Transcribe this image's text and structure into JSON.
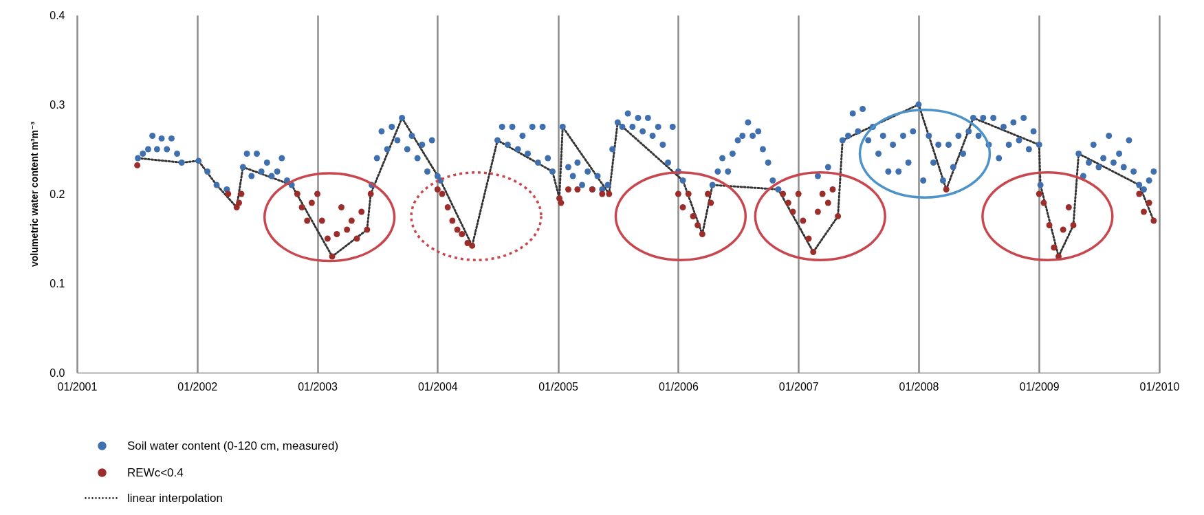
{
  "chart_data": {
    "type": "scatter",
    "ylabel": "volumetric water content m³m⁻³",
    "xlim": [
      "2001-01",
      "2010-01"
    ],
    "ylim": [
      0,
      0.4
    ],
    "xticks": [
      {
        "value": "2001-01",
        "label": "01/2001"
      },
      {
        "value": "2002-01",
        "label": "01/2002"
      },
      {
        "value": "2003-01",
        "label": "01/2003"
      },
      {
        "value": "2004-01",
        "label": "01/2004"
      },
      {
        "value": "2005-01",
        "label": "01/2005"
      },
      {
        "value": "2006-01",
        "label": "01/2006"
      },
      {
        "value": "2007-01",
        "label": "01/2007"
      },
      {
        "value": "2008-01",
        "label": "01/2008"
      },
      {
        "value": "2009-01",
        "label": "01/2009"
      },
      {
        "value": "2010-01",
        "label": "01/2010"
      }
    ],
    "yticks": [
      {
        "value": 0,
        "label": "0.0"
      },
      {
        "value": 0.1,
        "label": "0.1"
      },
      {
        "value": 0.2,
        "label": "0.2"
      },
      {
        "value": 0.3,
        "label": "0.3"
      },
      {
        "value": 0.4,
        "label": "0.4"
      }
    ],
    "grid": "x",
    "legend": "bottom left",
    "series": [
      {
        "name": "Soil water content (0-120 cm, measured)",
        "type": "scatter",
        "marker": "circle",
        "color": "#3f6faf",
        "x": [
          "2001-07-05",
          "2001-07-20",
          "2001-08-05",
          "2001-08-18",
          "2001-09-01",
          "2001-09-15",
          "2001-10-01",
          "2001-10-15",
          "2001-11-01",
          "2001-11-15",
          "2002-01-05",
          "2002-02-01",
          "2002-03-01",
          "2002-04-01",
          "2002-05-20",
          "2002-06-01",
          "2002-06-15",
          "2002-07-01",
          "2002-07-15",
          "2002-08-01",
          "2002-08-15",
          "2002-09-01",
          "2002-09-15",
          "2002-10-01",
          "2002-10-15",
          "2003-06-15",
          "2003-07-01",
          "2003-07-15",
          "2003-08-01",
          "2003-08-15",
          "2003-09-01",
          "2003-09-15",
          "2003-10-01",
          "2003-10-15",
          "2003-11-01",
          "2003-11-15",
          "2003-12-01",
          "2003-12-15",
          "2004-01-01",
          "2004-01-10",
          "2004-07-01",
          "2004-07-15",
          "2004-08-01",
          "2004-08-15",
          "2004-09-01",
          "2004-09-15",
          "2004-10-01",
          "2004-10-15",
          "2004-11-01",
          "2004-11-15",
          "2004-12-01",
          "2004-12-15",
          "2005-01-15",
          "2005-02-01",
          "2005-02-15",
          "2005-03-01",
          "2005-03-15",
          "2005-04-01",
          "2005-04-15",
          "2005-05-01",
          "2005-05-15",
          "2005-06-01",
          "2005-06-15",
          "2005-07-01",
          "2005-07-15",
          "2005-08-01",
          "2005-08-15",
          "2005-09-01",
          "2005-09-15",
          "2005-10-01",
          "2005-10-15",
          "2005-11-01",
          "2005-11-15",
          "2005-12-01",
          "2005-12-15",
          "2006-01-01",
          "2006-01-15",
          "2006-04-15",
          "2006-05-01",
          "2006-05-15",
          "2006-06-01",
          "2006-06-15",
          "2006-07-01",
          "2006-07-15",
          "2006-08-01",
          "2006-08-15",
          "2006-09-01",
          "2006-09-15",
          "2006-10-01",
          "2006-10-15",
          "2006-11-01",
          "2007-03-01",
          "2007-04-01",
          "2007-05-15",
          "2007-06-01",
          "2007-06-15",
          "2007-07-01",
          "2007-07-15",
          "2007-08-01",
          "2007-08-15",
          "2007-09-01",
          "2007-09-15",
          "2007-10-01",
          "2007-10-15",
          "2007-11-01",
          "2007-11-15",
          "2007-12-01",
          "2007-12-15",
          "2008-01-01",
          "2008-01-15",
          "2008-02-01",
          "2008-02-15",
          "2008-03-01",
          "2008-03-15",
          "2008-04-01",
          "2008-04-15",
          "2008-05-01",
          "2008-05-15",
          "2008-06-01",
          "2008-06-15",
          "2008-07-01",
          "2008-07-15",
          "2008-08-01",
          "2008-08-15",
          "2008-09-01",
          "2008-09-15",
          "2008-10-01",
          "2008-10-15",
          "2008-11-01",
          "2008-11-15",
          "2008-12-01",
          "2008-12-15",
          "2009-01-01",
          "2009-01-05",
          "2009-05-01",
          "2009-05-15",
          "2009-06-01",
          "2009-06-15",
          "2009-07-01",
          "2009-07-15",
          "2009-08-01",
          "2009-08-15",
          "2009-09-01",
          "2009-09-15",
          "2009-10-01",
          "2009-10-15",
          "2009-11-01",
          "2009-11-15",
          "2009-12-01",
          "2009-12-15"
        ],
        "values": [
          0.24,
          0.245,
          0.25,
          0.265,
          0.25,
          0.262,
          0.25,
          0.262,
          0.245,
          0.235,
          0.237,
          0.225,
          0.21,
          0.205,
          0.23,
          0.245,
          0.22,
          0.245,
          0.225,
          0.235,
          0.22,
          0.225,
          0.24,
          0.215,
          0.21,
          0.21,
          0.24,
          0.27,
          0.25,
          0.275,
          0.26,
          0.285,
          0.25,
          0.265,
          0.24,
          0.255,
          0.225,
          0.26,
          0.22,
          0.215,
          0.26,
          0.275,
          0.255,
          0.275,
          0.25,
          0.265,
          0.245,
          0.275,
          0.235,
          0.275,
          0.24,
          0.225,
          0.275,
          0.23,
          0.22,
          0.235,
          0.21,
          0.225,
          0.205,
          0.22,
          0.205,
          0.21,
          0.25,
          0.28,
          0.275,
          0.29,
          0.275,
          0.285,
          0.27,
          0.285,
          0.265,
          0.275,
          0.255,
          0.235,
          0.275,
          0.225,
          0.215,
          0.21,
          0.225,
          0.24,
          0.225,
          0.245,
          0.26,
          0.265,
          0.28,
          0.265,
          0.27,
          0.25,
          0.235,
          0.215,
          0.205,
          0.22,
          0.23,
          0.26,
          0.265,
          0.29,
          0.27,
          0.295,
          0.26,
          0.275,
          0.245,
          0.265,
          0.225,
          0.255,
          0.225,
          0.265,
          0.235,
          0.27,
          0.3,
          0.215,
          0.265,
          0.235,
          0.255,
          0.215,
          0.255,
          0.23,
          0.265,
          0.245,
          0.27,
          0.285,
          0.265,
          0.285,
          0.255,
          0.285,
          0.24,
          0.275,
          0.255,
          0.28,
          0.26,
          0.285,
          0.25,
          0.27,
          0.255,
          0.21,
          0.245,
          0.22,
          0.235,
          0.255,
          0.23,
          0.24,
          0.265,
          0.235,
          0.245,
          0.23,
          0.26,
          0.225,
          0.21,
          0.205,
          0.215,
          0.225
        ]
      },
      {
        "name": "REWc<0.4",
        "type": "scatter",
        "marker": "circle",
        "color": "#9b2d2a",
        "x": [
          "2001-07-03",
          "2002-04-05",
          "2002-05-01",
          "2002-05-08",
          "2002-05-15",
          "2002-11-01",
          "2002-11-15",
          "2002-12-01",
          "2002-12-15",
          "2003-01-01",
          "2003-01-15",
          "2003-02-01",
          "2003-02-15",
          "2003-03-01",
          "2003-03-15",
          "2003-04-01",
          "2003-04-15",
          "2003-05-01",
          "2003-05-15",
          "2003-06-01",
          "2003-06-12",
          "2004-01-01",
          "2004-01-15",
          "2004-02-01",
          "2004-02-15",
          "2004-03-01",
          "2004-03-15",
          "2004-04-01",
          "2004-04-15",
          "2005-01-05",
          "2005-01-10",
          "2005-02-01",
          "2005-03-01",
          "2005-04-15",
          "2005-05-15",
          "2005-06-05",
          "2006-01-01",
          "2006-01-15",
          "2006-02-01",
          "2006-02-15",
          "2006-03-01",
          "2006-03-15",
          "2006-04-01",
          "2006-04-10",
          "2006-11-15",
          "2006-12-01",
          "2006-12-15",
          "2007-01-01",
          "2007-01-15",
          "2007-02-01",
          "2007-02-15",
          "2007-03-01",
          "2007-03-15",
          "2007-04-01",
          "2007-04-15",
          "2007-05-01",
          "2008-03-25",
          "2009-01-01",
          "2009-01-15",
          "2009-02-01",
          "2009-02-15",
          "2009-03-01",
          "2009-03-15",
          "2009-04-01",
          "2009-04-15",
          "2009-11-01",
          "2009-11-15",
          "2009-12-01",
          "2009-12-15"
        ],
        "values": [
          0.232,
          0.2,
          0.185,
          0.19,
          0.2,
          0.2,
          0.185,
          0.17,
          0.19,
          0.2,
          0.17,
          0.15,
          0.13,
          0.155,
          0.185,
          0.16,
          0.17,
          0.15,
          0.18,
          0.16,
          0.2,
          0.205,
          0.2,
          0.185,
          0.17,
          0.16,
          0.155,
          0.145,
          0.142,
          0.195,
          0.19,
          0.205,
          0.205,
          0.205,
          0.2,
          0.2,
          0.2,
          0.185,
          0.2,
          0.175,
          0.165,
          0.155,
          0.2,
          0.19,
          0.2,
          0.19,
          0.18,
          0.2,
          0.17,
          0.15,
          0.135,
          0.18,
          0.2,
          0.19,
          0.205,
          0.175,
          0.205,
          0.2,
          0.19,
          0.165,
          0.14,
          0.13,
          0.16,
          0.185,
          0.165,
          0.2,
          0.18,
          0.19,
          0.17
        ]
      },
      {
        "name": "linear interpolation",
        "type": "line",
        "line_style": "dotted",
        "color": "#333333",
        "x": [
          "2001-07-05",
          "2001-11-15",
          "2002-01-05",
          "2002-03-01",
          "2002-05-01",
          "2002-05-20",
          "2002-10-15",
          "2003-02-15",
          "2003-06-01",
          "2003-06-12",
          "2003-09-15",
          "2004-01-10",
          "2004-04-15",
          "2004-07-01",
          "2004-12-15",
          "2005-01-05",
          "2005-01-15",
          "2005-06-05",
          "2005-07-01",
          "2006-01-15",
          "2006-03-15",
          "2006-04-15",
          "2006-11-01",
          "2007-02-15",
          "2007-05-01",
          "2007-05-15",
          "2008-01-01",
          "2008-03-25",
          "2008-06-15",
          "2009-01-01",
          "2009-01-05",
          "2009-03-01",
          "2009-04-15",
          "2009-05-01",
          "2009-11-01",
          "2009-12-15"
        ],
        "values": [
          0.24,
          0.235,
          0.237,
          0.21,
          0.185,
          0.23,
          0.21,
          0.13,
          0.16,
          0.2,
          0.285,
          0.215,
          0.142,
          0.26,
          0.225,
          0.195,
          0.275,
          0.2,
          0.28,
          0.215,
          0.155,
          0.21,
          0.205,
          0.135,
          0.175,
          0.26,
          0.3,
          0.205,
          0.285,
          0.255,
          0.21,
          0.13,
          0.165,
          0.245,
          0.21,
          0.17
        ]
      }
    ]
  }
}
